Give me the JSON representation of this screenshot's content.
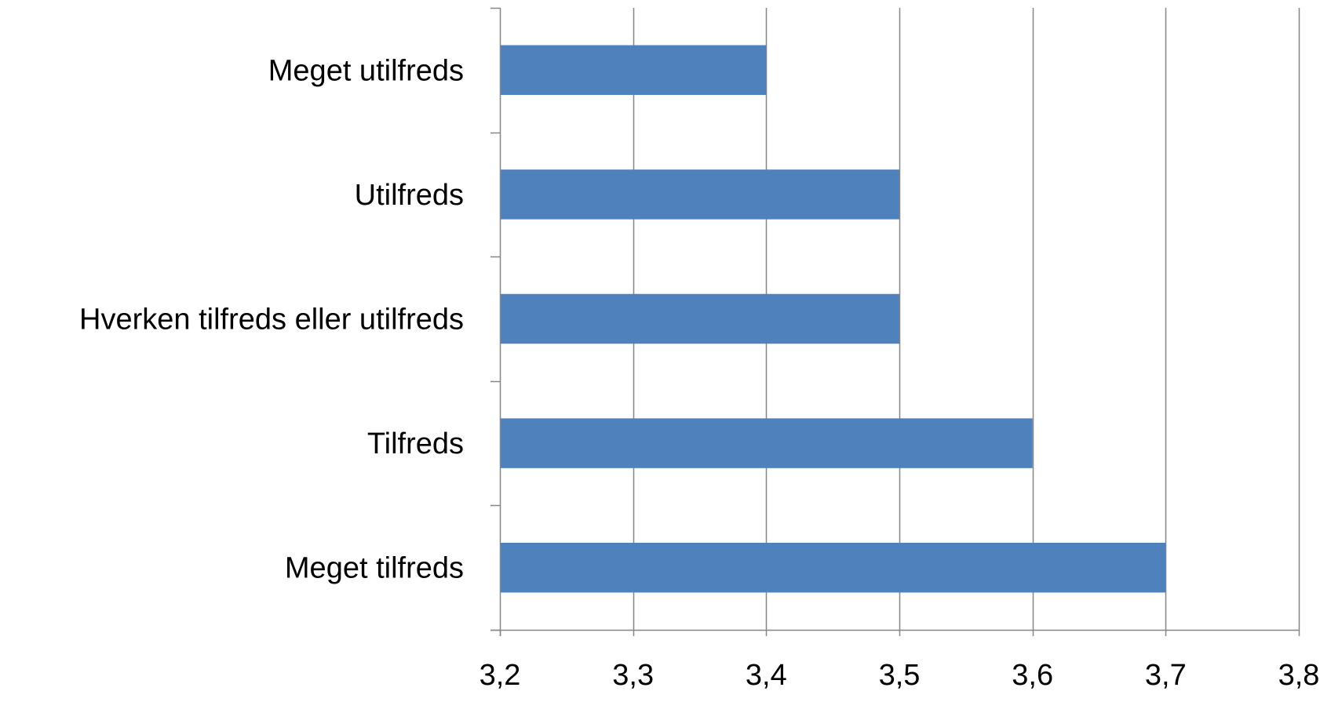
{
  "chart_data": {
    "type": "bar",
    "orientation": "horizontal",
    "title": "",
    "xlabel": "",
    "ylabel": "",
    "categories": [
      "Meget utilfreds",
      "Utilfreds",
      "Hverken tilfreds eller utilfreds",
      "Tilfreds",
      "Meget tilfreds"
    ],
    "values": [
      3.4,
      3.5,
      3.5,
      3.6,
      3.7
    ],
    "xlim": [
      3.2,
      3.8
    ],
    "xticks": [
      3.2,
      3.3,
      3.4,
      3.5,
      3.6,
      3.7,
      3.8
    ],
    "xtick_labels": [
      "3,2",
      "3,3",
      "3,4",
      "3,5",
      "3,6",
      "3,7",
      "3,8"
    ],
    "grid": "vertical",
    "legend": "none",
    "bar_color": "#4F81BD",
    "grid_color": "#868686"
  }
}
